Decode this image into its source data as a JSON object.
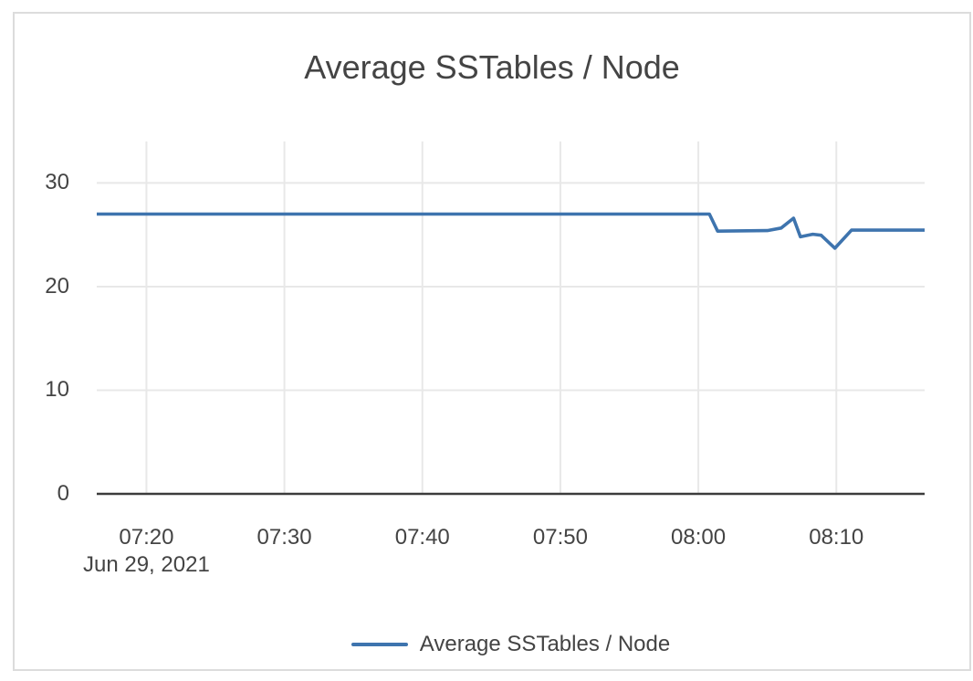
{
  "card": {
    "background": "#ffffff",
    "border_color": "#dcdcdc"
  },
  "chart_data": {
    "type": "line",
    "title": "Average SSTables / Node",
    "legend": {
      "position": "bottom-center",
      "label": "Average SSTables / Node"
    },
    "x_axis": {
      "tick_labels": [
        "07:20",
        "07:30",
        "07:40",
        "07:50",
        "08:00",
        "08:10"
      ],
      "date_label": "Jun 29, 2021",
      "range": [
        "07:16.4",
        "08:16.4"
      ]
    },
    "y_axis": {
      "tick_labels": [
        "0",
        "10",
        "20",
        "30"
      ],
      "tick_values": [
        0,
        10,
        20,
        30
      ],
      "range": [
        0,
        34
      ]
    },
    "grid": true,
    "colors": {
      "grid": "#e8e8e8",
      "axis": "#3c3c3c",
      "text": "#444444"
    },
    "series": [
      {
        "name": "Average SSTables / Node",
        "color": "#3e74ae",
        "line_width": 3.6,
        "points": [
          [
            "07:16.4",
            27
          ],
          [
            "08:00.8",
            27
          ],
          [
            "08:01.4",
            25.35
          ],
          [
            "08:05.0",
            25.4
          ],
          [
            "08:06.0",
            25.65
          ],
          [
            "08:06.9",
            26.6
          ],
          [
            "08:07.4",
            24.8
          ],
          [
            "08:08.3",
            25.05
          ],
          [
            "08:08.9",
            24.95
          ],
          [
            "08:09.9",
            23.7
          ],
          [
            "08:11.1",
            25.45
          ],
          [
            "08:16.4",
            25.45
          ]
        ]
      }
    ]
  }
}
